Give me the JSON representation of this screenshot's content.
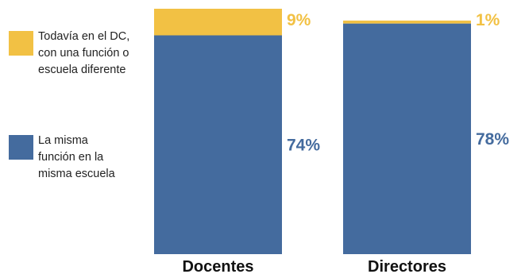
{
  "chart_data": {
    "type": "bar",
    "stacked": true,
    "categories": [
      "Docentes",
      "Directores"
    ],
    "series": [
      {
        "name": "La misma función en la misma escuela",
        "legend_lines": [
          "La misma",
          "función en la",
          "misma escuela"
        ],
        "values": [
          74,
          78
        ],
        "labels": [
          "74%",
          "78%"
        ],
        "color": "#446B9E",
        "label_color": "#446B9E"
      },
      {
        "name": "Todavía en el DC, con una función o escuela diferente",
        "legend_lines": [
          "Todavía en el DC,",
          "con una función o",
          "escuela diferente"
        ],
        "values": [
          9,
          1
        ],
        "labels": [
          "9%",
          "1%"
        ],
        "color": "#F2C144",
        "label_color": "#F2C144"
      }
    ],
    "ylim": [
      0,
      83
    ],
    "title": "",
    "xlabel": "",
    "ylabel": "",
    "grid": false,
    "legend_position": "left"
  }
}
